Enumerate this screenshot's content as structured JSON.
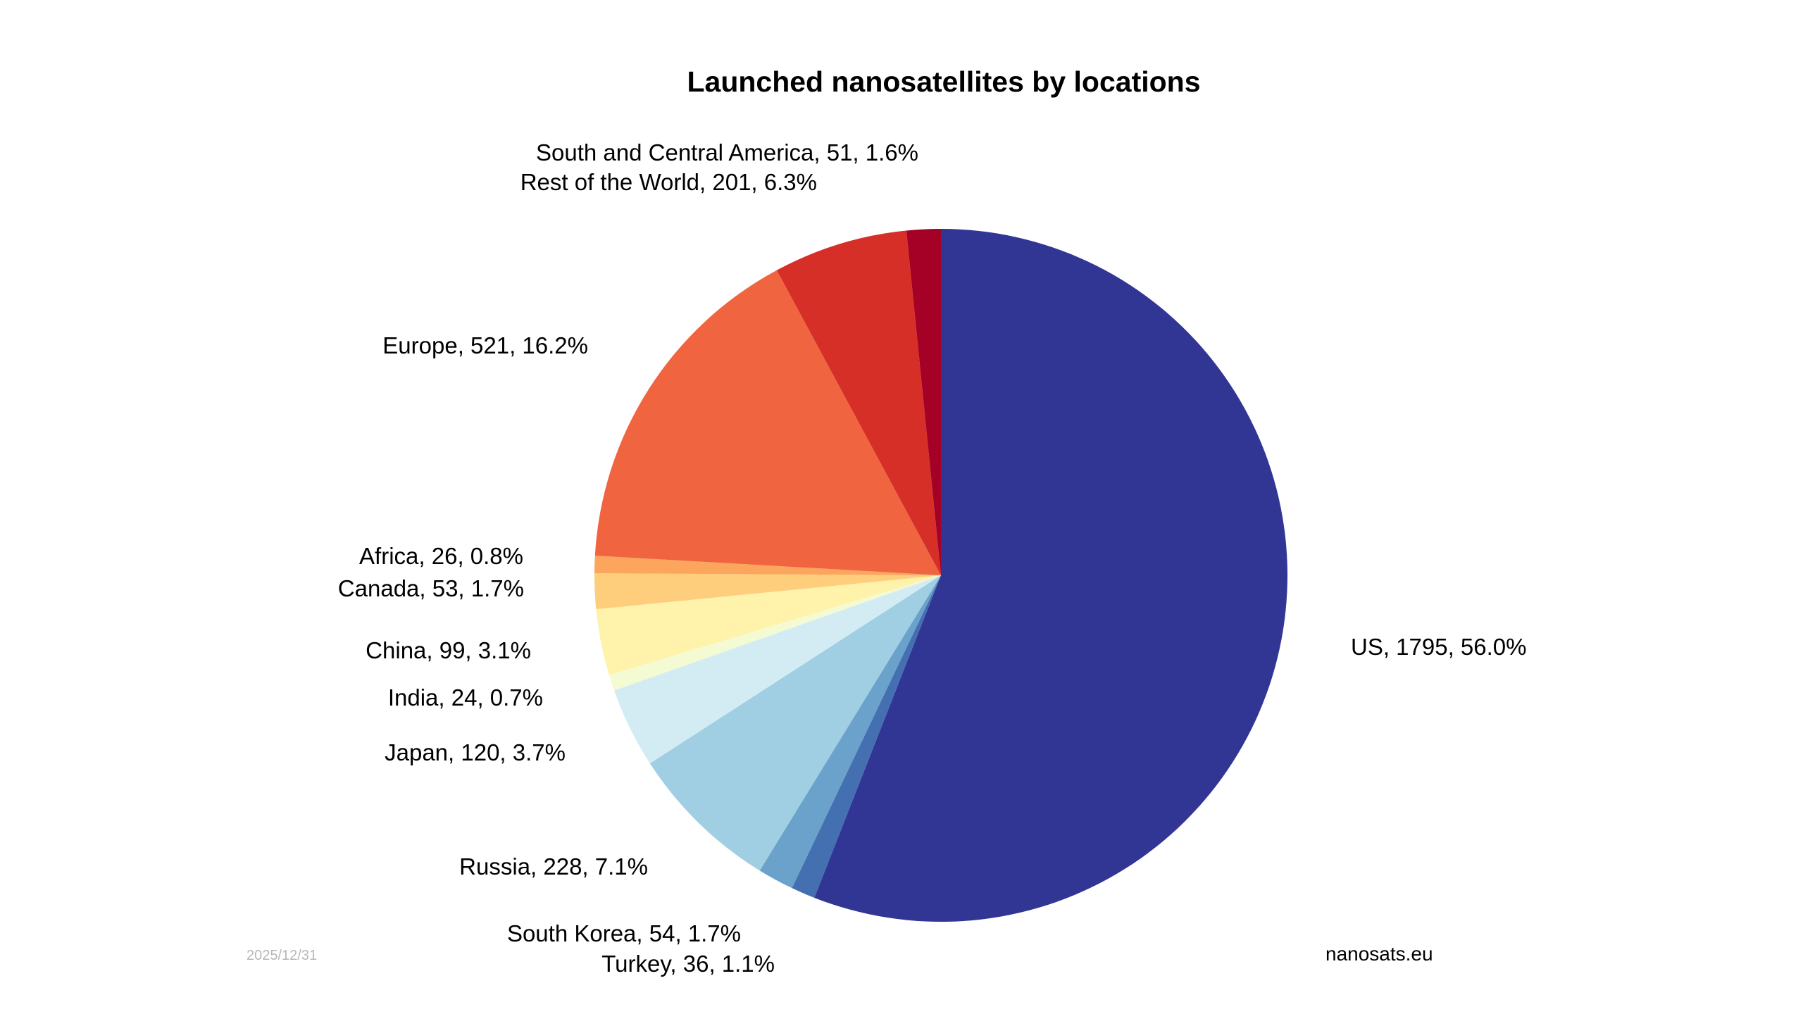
{
  "chart_data": {
    "type": "pie",
    "title": "Launched nanosatellites by locations",
    "start_angle_deg": 90,
    "direction": "clockwise",
    "slices": [
      {
        "label": "US, 1795, 56.0%",
        "value": 1795,
        "percent": 56.0,
        "color": "#313695"
      },
      {
        "label": "Turkey, 36, 1.1%",
        "value": 36,
        "percent": 1.1,
        "color": "#4470b1"
      },
      {
        "label": "South Korea, 54, 1.7%",
        "value": 54,
        "percent": 1.7,
        "color": "#6ba2cb"
      },
      {
        "label": "Russia, 228, 7.1%",
        "value": 228,
        "percent": 7.1,
        "color": "#a0cfe3"
      },
      {
        "label": "Japan, 120, 3.7%",
        "value": 120,
        "percent": 3.7,
        "color": "#d3ecf4"
      },
      {
        "label": "India, 24, 0.7%",
        "value": 24,
        "percent": 0.7,
        "color": "#f4fbd2"
      },
      {
        "label": "China, 99, 3.1%",
        "value": 99,
        "percent": 3.1,
        "color": "#fff2aa"
      },
      {
        "label": "Canada, 53, 1.7%",
        "value": 53,
        "percent": 1.7,
        "color": "#fece7c"
      },
      {
        "label": "Africa, 26, 0.8%",
        "value": 26,
        "percent": 0.8,
        "color": "#fca55d"
      },
      {
        "label": "Europe, 521, 16.2%",
        "value": 521,
        "percent": 16.2,
        "color": "#f06540"
      },
      {
        "label": "Rest of the World, 201, 6.3%",
        "value": 201,
        "percent": 6.3,
        "color": "#d62f27"
      },
      {
        "label": "South and Central America, 51, 1.6%",
        "value": 51,
        "percent": 1.6,
        "color": "#a50026"
      }
    ]
  },
  "footer": {
    "date": "2025/12/31",
    "source": "nanosats.eu"
  }
}
